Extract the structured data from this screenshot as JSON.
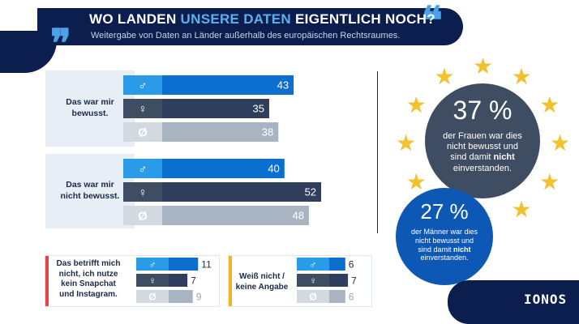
{
  "header": {
    "title_part1": "WO LANDEN ",
    "title_accent": "UNSERE DATEN",
    "title_part2": " EIGENTLICH NOCH?",
    "subtitle": "Weitergabe von Daten an Länder außerhalb des europäischen Rechtsraumes.",
    "quote_open": "❞",
    "quote_close": "❝"
  },
  "colors": {
    "male": "#0b6fcf",
    "female": "#2e3e5c",
    "neutral": "#a9b4c2",
    "male_tab": "#2a9be8",
    "female_tab": "#3f4d62",
    "neutral_tab": "#d3d9e1",
    "accent_red": "#e0474c",
    "accent_yellow": "#f5b324",
    "star": "#f2c12e"
  },
  "gender_symbols": {
    "male": "♂",
    "female": "♀",
    "neutral": "Ø"
  },
  "chart_data": [
    {
      "type": "bar",
      "categories": [
        "Das war mir bewusst.",
        "Das war mir nicht bewusst."
      ],
      "series": [
        {
          "name": "♂",
          "values": [
            43,
            40
          ]
        },
        {
          "name": "♀",
          "values": [
            35,
            52
          ]
        },
        {
          "name": "Ø",
          "values": [
            38,
            48
          ]
        }
      ]
    },
    {
      "type": "bar",
      "categories": [
        "Das betrifft mich nicht, ich nutze kein Snapchat und Instagram."
      ],
      "series": [
        {
          "name": "♂",
          "values": [
            11
          ]
        },
        {
          "name": "♀",
          "values": [
            7
          ]
        },
        {
          "name": "Ø",
          "values": [
            9
          ]
        }
      ]
    },
    {
      "type": "bar",
      "categories": [
        "Weiß nicht / keine Angabe"
      ],
      "series": [
        {
          "name": "♂",
          "values": [
            6
          ]
        },
        {
          "name": "♀",
          "values": [
            7
          ]
        },
        {
          "name": "Ø",
          "values": [
            6
          ]
        }
      ]
    }
  ],
  "groups": {
    "g1_label": "Das war mir\nbewusst.",
    "g2_label": "Das war mir\nnicht bewusst.",
    "g3_label": "Das betrifft mich\nnicht, ich nutze\nkein Snapchat\nund Instagram.",
    "g4_label": "Weiß nicht /\nkeine Angabe"
  },
  "stats": {
    "women_pct": "37 %",
    "women_text_1": "der Frauen war dies\nnicht bewusst und\nsind damit ",
    "women_text_bold": "nicht",
    "women_text_2": "\neinverstanden.",
    "men_pct": "27 %",
    "men_text_1": "der Männer war dies\nnicht bewusst und\nsind damit ",
    "men_text_bold": "nicht",
    "men_text_2": "\neinverstanden."
  },
  "logo": "IONOS"
}
